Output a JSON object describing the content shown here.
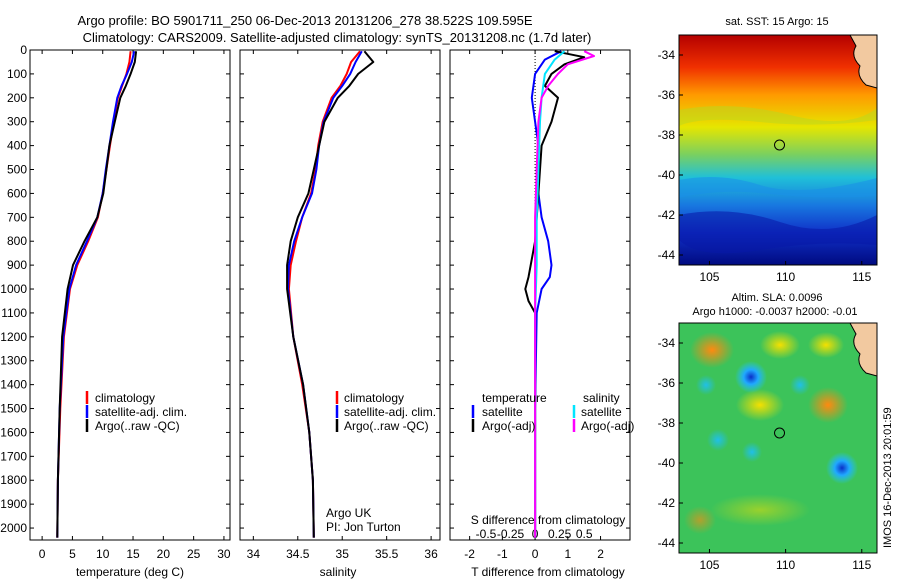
{
  "figure": {
    "title_line1": "Argo profile: BO 5901711_250 06-Dec-2013 20131206_278 38.522S 109.595E",
    "title_line2": "Climatology: CARS2009. Satellite-adjusted climatology: synTS_20131208.nc (1.7d later)",
    "credit_line1": "Argo UK",
    "credit_line2": "PI: Jon Turton",
    "side_stamp": "IMOS 16-Dec-2013 20:01:59"
  },
  "colors": {
    "climatology": "#ff0000",
    "satellite": "#0000ff",
    "argo": "#000000",
    "salinity_satellite": "#00e5ff",
    "salinity_argo": "#ff00ff"
  },
  "chart_data": [
    {
      "type": "line",
      "panel": "temperature",
      "xlabel": "temperature (deg C)",
      "xlim": [
        -2,
        31
      ],
      "ylim": [
        2050,
        0
      ],
      "xticks": [
        0,
        5,
        10,
        15,
        20,
        25,
        30
      ],
      "xtick_labels": [
        "0",
        "5",
        "10",
        "15",
        "20",
        "25",
        "30"
      ],
      "yticks": [
        0,
        100,
        200,
        300,
        400,
        500,
        600,
        700,
        800,
        900,
        1000,
        1100,
        1200,
        1300,
        1400,
        1500,
        1600,
        1700,
        1800,
        1900,
        2000
      ],
      "ytick_labels": [
        "0",
        "100",
        "200",
        "300",
        "400",
        "500",
        "600",
        "700",
        "800",
        "900",
        "1000",
        "1100",
        "1200",
        "1300",
        "1400",
        "1500",
        "1600",
        "1700",
        "1800",
        "1900",
        "2000"
      ],
      "legend": [
        "climatology",
        "satellite-adj. clim.",
        "Argo(..raw -QC)"
      ],
      "series": [
        {
          "name": "climatology",
          "color": "#ff0000",
          "x": [
            14.6,
            14.4,
            13.9,
            13.2,
            12.5,
            11.8,
            11.2,
            10.6,
            10.0,
            9.2,
            7.6,
            5.8,
            4.6,
            3.6,
            3.0,
            2.6,
            2.5
          ],
          "y": [
            5,
            50,
            100,
            150,
            200,
            300,
            400,
            500,
            600,
            700,
            800,
            900,
            1000,
            1200,
            1500,
            1800,
            2040
          ]
        },
        {
          "name": "satellite-adj. clim.",
          "color": "#0000ff",
          "x": [
            15.2,
            14.8,
            14.0,
            13.1,
            12.4,
            11.7,
            11.1,
            10.5,
            10.0,
            9.1,
            7.4,
            5.6,
            4.5,
            3.5,
            2.9,
            2.6,
            2.5
          ],
          "y": [
            5,
            50,
            100,
            150,
            200,
            300,
            400,
            500,
            600,
            700,
            800,
            900,
            1000,
            1200,
            1500,
            1800,
            2040
          ]
        },
        {
          "name": "Argo(..raw -QC)",
          "color": "#000000",
          "x": [
            15.5,
            15.3,
            14.6,
            13.8,
            12.9,
            12.0,
            11.1,
            10.6,
            10.1,
            9.1,
            7.0,
            5.1,
            4.2,
            3.3,
            2.9,
            2.6,
            2.5
          ],
          "y": [
            5,
            50,
            100,
            150,
            200,
            300,
            400,
            500,
            600,
            700,
            800,
            900,
            1000,
            1200,
            1500,
            1800,
            2040
          ]
        }
      ]
    },
    {
      "type": "line",
      "panel": "salinity",
      "xlabel": "salinity",
      "xlim": [
        33.85,
        36.1
      ],
      "ylim": [
        2050,
        0
      ],
      "xticks": [
        34,
        34.5,
        35,
        35.5,
        36
      ],
      "xtick_labels": [
        "34",
        "34.5",
        "35",
        "35.5",
        "36"
      ],
      "legend": [
        "climatology",
        "satellite-adj. clim.",
        "Argo(..raw -QC)"
      ],
      "series": [
        {
          "name": "climatology",
          "color": "#ff0000",
          "x": [
            35.2,
            35.1,
            35.05,
            34.98,
            34.88,
            34.78,
            34.73,
            34.7,
            34.65,
            34.55,
            34.48,
            34.42,
            34.4,
            34.45,
            34.55,
            34.63,
            34.67,
            34.68
          ],
          "y": [
            5,
            50,
            100,
            150,
            200,
            300,
            400,
            500,
            600,
            700,
            800,
            900,
            1000,
            1200,
            1400,
            1600,
            1800,
            2040
          ]
        },
        {
          "name": "satellite-adj. clim.",
          "color": "#0000ff",
          "x": [
            35.22,
            35.15,
            35.09,
            35.0,
            34.9,
            34.79,
            34.74,
            34.71,
            34.66,
            34.55,
            34.46,
            34.4,
            34.39,
            34.45,
            34.56,
            34.63,
            34.67,
            34.68
          ],
          "y": [
            5,
            50,
            100,
            150,
            200,
            300,
            400,
            500,
            600,
            700,
            800,
            900,
            1000,
            1200,
            1400,
            1600,
            1800,
            2040
          ]
        },
        {
          "name": "Argo(..raw -QC)",
          "color": "#000000",
          "x": [
            35.25,
            35.35,
            35.18,
            35.08,
            34.95,
            34.8,
            34.74,
            34.68,
            34.62,
            34.5,
            34.42,
            34.38,
            34.38,
            34.45,
            34.56,
            34.63,
            34.67,
            34.68
          ],
          "y": [
            5,
            50,
            100,
            150,
            200,
            300,
            400,
            500,
            600,
            700,
            800,
            900,
            1000,
            1200,
            1400,
            1600,
            1800,
            2040
          ]
        }
      ]
    },
    {
      "type": "line",
      "panel": "differences",
      "xlabel": "T difference from climatology",
      "xlabel_top": "S difference from climatology",
      "xlim": [
        -2.6,
        2.9
      ],
      "ylim": [
        2050,
        0
      ],
      "xticks": [
        -2,
        -1,
        0,
        1,
        2
      ],
      "xtick_labels": [
        "-2",
        "-1",
        "0",
        "1",
        "2"
      ],
      "xticks_top": [
        -1.5,
        -0.75,
        0,
        0.75,
        1.5
      ],
      "xtick_labels_top": [
        "-0.5",
        "-0.25",
        "0",
        "0.25",
        "0.5"
      ],
      "legend_title_left": "temperature",
      "legend_title_right": "salinity",
      "legend": [
        "satellite",
        "Argo(-adj)",
        "satellite",
        "Argo(-adj)"
      ],
      "series": [
        {
          "name": "satellite",
          "color": "#0000ff",
          "x": [
            0.8,
            0.3,
            0.0,
            -0.1,
            0.0,
            0.1,
            0.05,
            0.1,
            0.2,
            0.4,
            0.5,
            0.45,
            0.2,
            0.05,
            0.0,
            0.0
          ],
          "y": [
            5,
            40,
            100,
            200,
            300,
            400,
            500,
            600,
            700,
            800,
            900,
            950,
            1000,
            1100,
            1500,
            2040
          ]
        },
        {
          "name": "Argo(-adj)",
          "color": "#000000",
          "x": [
            0.6,
            1.5,
            0.9,
            0.5,
            0.3,
            0.7,
            0.5,
            0.2,
            0.1,
            0.0,
            -0.2,
            -0.3,
            -0.2,
            0.0,
            0.0,
            0.0
          ],
          "y": [
            5,
            30,
            60,
            100,
            150,
            200,
            300,
            400,
            600,
            800,
            950,
            1000,
            1050,
            1100,
            1500,
            2040
          ]
        },
        {
          "name": "satellite",
          "color": "#00e5ff",
          "x": [
            0.9,
            0.6,
            0.3,
            0.2,
            0.15,
            0.1,
            0.05,
            0.05,
            0.0,
            0.0,
            0.0
          ],
          "y": [
            5,
            40,
            100,
            200,
            300,
            500,
            700,
            900,
            1100,
            1500,
            2040
          ]
        },
        {
          "name": "Argo(-adj)",
          "color": "#ff00ff",
          "x": [
            1.5,
            1.8,
            1.0,
            0.7,
            0.4,
            0.2,
            0.1,
            0.05,
            0.0,
            0.0
          ],
          "y": [
            5,
            25,
            60,
            100,
            150,
            200,
            300,
            500,
            700,
            2040
          ]
        }
      ]
    },
    {
      "type": "heatmap",
      "panel": "map_sst",
      "title": "sat. SST: 15 Argo: 15",
      "xlim": [
        103,
        116
      ],
      "ylim": [
        -44.5,
        -33
      ],
      "xticks": [
        105,
        110,
        115
      ],
      "xtick_labels": [
        "105",
        "110",
        "115"
      ],
      "yticks": [
        -34,
        -36,
        -38,
        -40,
        -42,
        -44
      ],
      "ytick_labels": [
        "-34",
        "-36",
        "-38",
        "-40",
        "-42",
        "-44"
      ],
      "marker": {
        "lon": 109.6,
        "lat": -38.5
      }
    },
    {
      "type": "heatmap",
      "panel": "map_sla",
      "title": "Altim. SLA: 0.0096",
      "subtitle": "Argo h1000: -0.0037 h2000: -0.01",
      "xlim": [
        103,
        116
      ],
      "ylim": [
        -44.5,
        -33
      ],
      "xticks": [
        105,
        110,
        115
      ],
      "xtick_labels": [
        "105",
        "110",
        "115"
      ],
      "yticks": [
        -34,
        -36,
        -38,
        -40,
        -42,
        -44
      ],
      "ytick_labels": [
        "-34",
        "-36",
        "-38",
        "-40",
        "-42",
        "-44"
      ],
      "marker": {
        "lon": 109.6,
        "lat": -38.5
      }
    }
  ]
}
